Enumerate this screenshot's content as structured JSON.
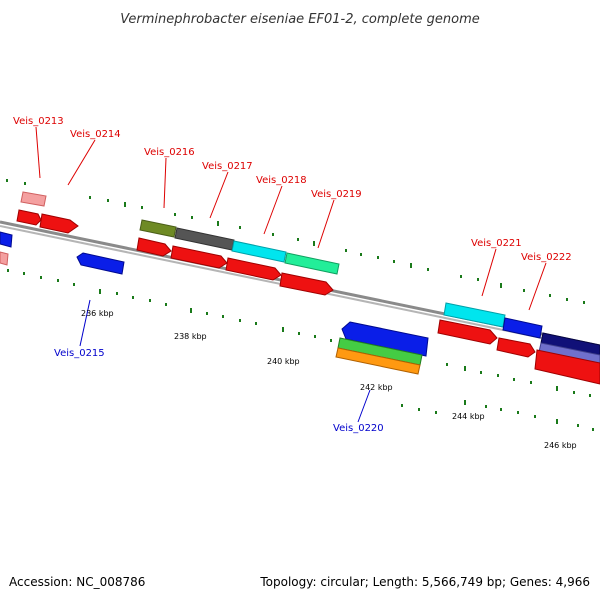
{
  "title": "Verminephrobacter eiseniae EF01-2, complete genome",
  "footer": {
    "accession": "Accession: NC_008786",
    "summary": "Topology: circular; Length: 5,566,749 bp; Genes: 4,966"
  },
  "colors": {
    "plus_label": "#dd0000",
    "minus_label": "#0000cc",
    "backbone": "#888888",
    "tick": "#1a7a1a"
  },
  "scale_labels": [
    "236 kbp",
    "238 kbp",
    "240 kbp",
    "242 kbp",
    "244 kbp",
    "246 kbp"
  ],
  "gene_labels_top": [
    "Veis_0213",
    "Veis_0214",
    "Veis_0216",
    "Veis_0217",
    "Veis_0218",
    "Veis_0219",
    "Veis_0221",
    "Veis_0222"
  ],
  "gene_labels_bottom": [
    "Veis_0215",
    "Veis_0220"
  ]
}
